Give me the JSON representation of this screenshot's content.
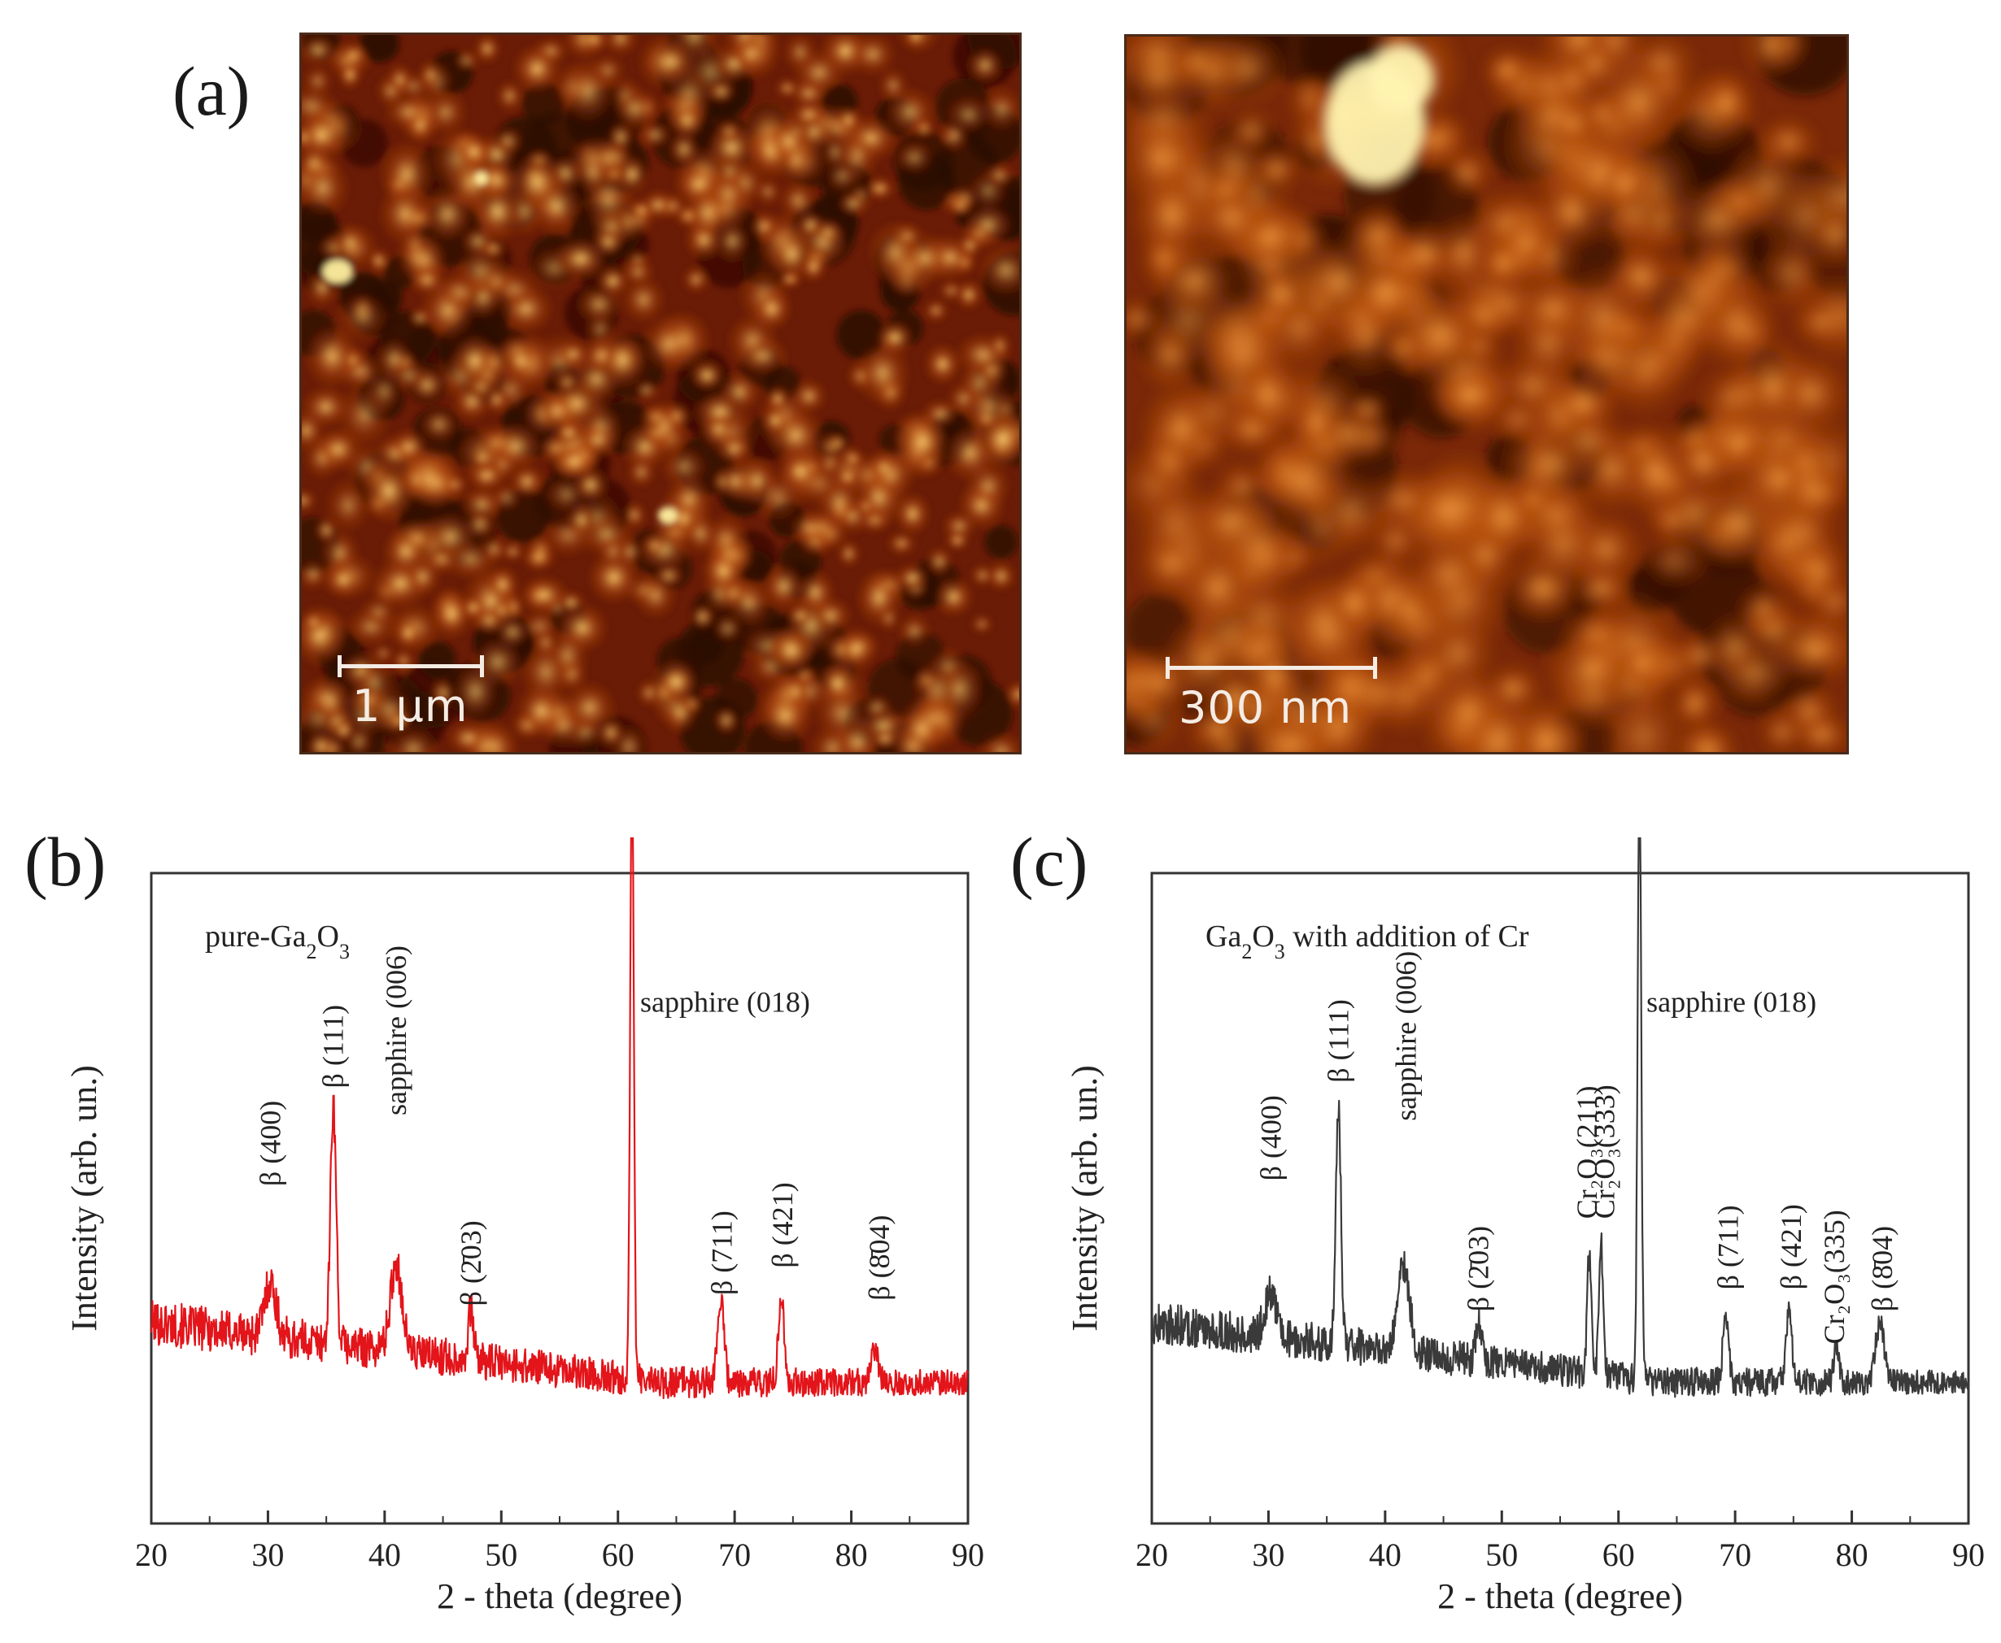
{
  "figure": {
    "panel_a": {
      "label": "(a)",
      "left_image": {
        "scale_label": "1 µm"
      },
      "right_image": {
        "scale_label": "300 nm"
      }
    },
    "panel_b": {
      "label": "(b)"
    },
    "panel_c": {
      "label": "(c)"
    }
  },
  "colors": {
    "afm_dark": "#2a0a04",
    "afm_mid": "#b04a10",
    "afm_bright": "#ffd070",
    "series_b": "#e3141a",
    "series_c": "#3a3a3a"
  },
  "chart_data": [
    {
      "type": "line",
      "id": "b",
      "title": "pure-Ga₂O₃",
      "title_parts": {
        "pre": "pure-Ga",
        "sub1": "2",
        "mid": "O",
        "sub2": "3"
      },
      "xlabel": "2 - theta (degree)",
      "ylabel": "Intensity (arb. un.)",
      "xlim": [
        20,
        90
      ],
      "ylim": [
        0,
        100
      ],
      "xticks": [
        20,
        30,
        40,
        50,
        60,
        70,
        80,
        90
      ],
      "grid": false,
      "series": [
        {
          "name": "pure-Ga2O3",
          "color": "#e3141a",
          "baseline": {
            "start": 22,
            "end": 11,
            "noise": 3.2
          },
          "peaks": [
            {
              "x": 30.2,
              "height": 10,
              "width": 0.7
            },
            {
              "x": 35.6,
              "height": 44,
              "width": 0.35
            },
            {
              "x": 41.0,
              "height": 16,
              "width": 0.7
            },
            {
              "x": 47.4,
              "height": 9,
              "width": 0.35
            },
            {
              "x": 61.2,
              "height": 112,
              "width": 0.22
            },
            {
              "x": 68.8,
              "height": 15,
              "width": 0.4
            },
            {
              "x": 74.0,
              "height": 16,
              "width": 0.35
            },
            {
              "x": 82.0,
              "height": 6,
              "width": 0.4
            }
          ]
        }
      ],
      "annotations": [
        {
          "text": "β (400)",
          "x": 30.2,
          "y": 47,
          "rotate": true
        },
        {
          "text": "β (111)",
          "x": 35.6,
          "y": 65,
          "rotate": true
        },
        {
          "text": "sapphire (006)",
          "x": 41.0,
          "y": 60,
          "rotate": true
        },
        {
          "text": "β (2̄03)",
          "x": 47.4,
          "y": 25,
          "rotate": true
        },
        {
          "text": "sapphire (018)",
          "x": 61.9,
          "y": 79,
          "rotate": false
        },
        {
          "text": "β (711)",
          "x": 68.9,
          "y": 27,
          "rotate": true
        },
        {
          "text": "β (421)",
          "x": 74.1,
          "y": 32,
          "rotate": true
        },
        {
          "text": "β (8̄04)",
          "x": 82.4,
          "y": 26,
          "rotate": true
        }
      ]
    },
    {
      "type": "line",
      "id": "c",
      "title": "Ga₂O₃ with addition of Cr",
      "title_parts": {
        "pre": "Ga",
        "sub1": "2",
        "mid": "O",
        "sub2": "3",
        "post": " with addition of Cr"
      },
      "xlabel": "2 - theta (degree)",
      "ylabel": "Intensity (arb. un.)",
      "xlim": [
        20,
        90
      ],
      "ylim": [
        0,
        100
      ],
      "xticks": [
        20,
        30,
        40,
        50,
        60,
        70,
        80,
        90
      ],
      "grid": false,
      "series": [
        {
          "name": "Ga2O3 with addition of Cr",
          "color": "#3a3a3a",
          "baseline": {
            "start": 22,
            "end": 11,
            "noise": 3.0
          },
          "peaks": [
            {
              "x": 30.2,
              "height": 8,
              "width": 0.7
            },
            {
              "x": 36.0,
              "height": 44,
              "width": 0.3
            },
            {
              "x": 41.6,
              "height": 16,
              "width": 0.7
            },
            {
              "x": 48.0,
              "height": 7,
              "width": 0.35
            },
            {
              "x": 57.5,
              "height": 22,
              "width": 0.25
            },
            {
              "x": 58.5,
              "height": 25,
              "width": 0.25
            },
            {
              "x": 61.8,
              "height": 110,
              "width": 0.22
            },
            {
              "x": 69.2,
              "height": 12,
              "width": 0.35
            },
            {
              "x": 74.6,
              "height": 13,
              "width": 0.35
            },
            {
              "x": 78.7,
              "height": 7,
              "width": 0.3
            },
            {
              "x": 82.4,
              "height": 11,
              "width": 0.5
            }
          ]
        }
      ],
      "annotations": [
        {
          "text": "β (400)",
          "x": 30.2,
          "y": 48,
          "rotate": true
        },
        {
          "text": "β (111)",
          "x": 36.0,
          "y": 66,
          "rotate": true
        },
        {
          "text": "sapphire (006)",
          "x": 41.8,
          "y": 59,
          "rotate": true
        },
        {
          "text": "β (2̄03)",
          "x": 48.0,
          "y": 24,
          "rotate": true
        },
        {
          "text": "Cr₂O₃(211)",
          "x": 57.3,
          "y": 41,
          "rotate": true
        },
        {
          "text": "Cr₂O₃(333)",
          "x": 58.8,
          "y": 41,
          "rotate": true
        },
        {
          "text": "sapphire (018)",
          "x": 62.4,
          "y": 79,
          "rotate": false
        },
        {
          "text": "β (711)",
          "x": 69.4,
          "y": 28,
          "rotate": true
        },
        {
          "text": "β (421)",
          "x": 74.8,
          "y": 28,
          "rotate": true
        },
        {
          "text": "Cr₂O₃(335)",
          "x": 78.5,
          "y": 18,
          "rotate": true
        },
        {
          "text": "β (8̄04)",
          "x": 82.6,
          "y": 24,
          "rotate": true
        }
      ]
    }
  ]
}
